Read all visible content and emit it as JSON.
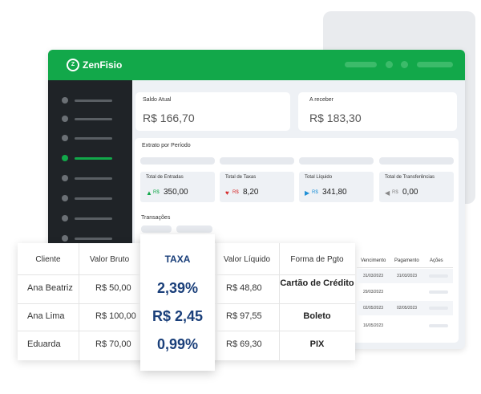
{
  "header": {
    "logo": "ZenFisio"
  },
  "balance_cards": [
    {
      "label": "Saldo Atual",
      "value": "R$ 166,70"
    },
    {
      "label": "A receber",
      "value": "R$ 183,30"
    }
  ],
  "statement": {
    "title": "Extrato por Período",
    "stats": [
      {
        "label": "Total de Entradas",
        "currency": "R$",
        "amount": "350,00"
      },
      {
        "label": "Total de Taxas",
        "currency": "R$",
        "amount": "8,20"
      },
      {
        "label": "Total Líquido",
        "currency": "R$",
        "amount": "341,80"
      },
      {
        "label": "Total de Transferências",
        "currency": "R$",
        "amount": "0,00"
      }
    ],
    "transactions_title": "Transações",
    "columns": [
      "Vencimento",
      "Pagamento",
      "Ações"
    ],
    "rows": [
      [
        "31/03/2023",
        "31/03/2023"
      ],
      [
        "29/03/2023",
        ""
      ],
      [
        "02/05/2023",
        "02/05/2023"
      ],
      [
        "16/05/2023",
        ""
      ]
    ]
  },
  "table": {
    "columns": [
      "Cliente",
      "Valor Bruto",
      "TAXA",
      "Valor Líquido",
      "Forma de Pgto"
    ],
    "rows": [
      [
        "Ana Beatriz",
        "R$ 50,00",
        "2,39%",
        "R$ 48,80",
        "Cartão de Crédito"
      ],
      [
        "Ana Lima",
        "R$ 100,00",
        "R$ 2,45",
        "R$ 97,55",
        "Boleto"
      ],
      [
        "Eduarda",
        "R$ 70,00",
        "0,99%",
        "R$ 69,30",
        "PIX"
      ]
    ]
  }
}
